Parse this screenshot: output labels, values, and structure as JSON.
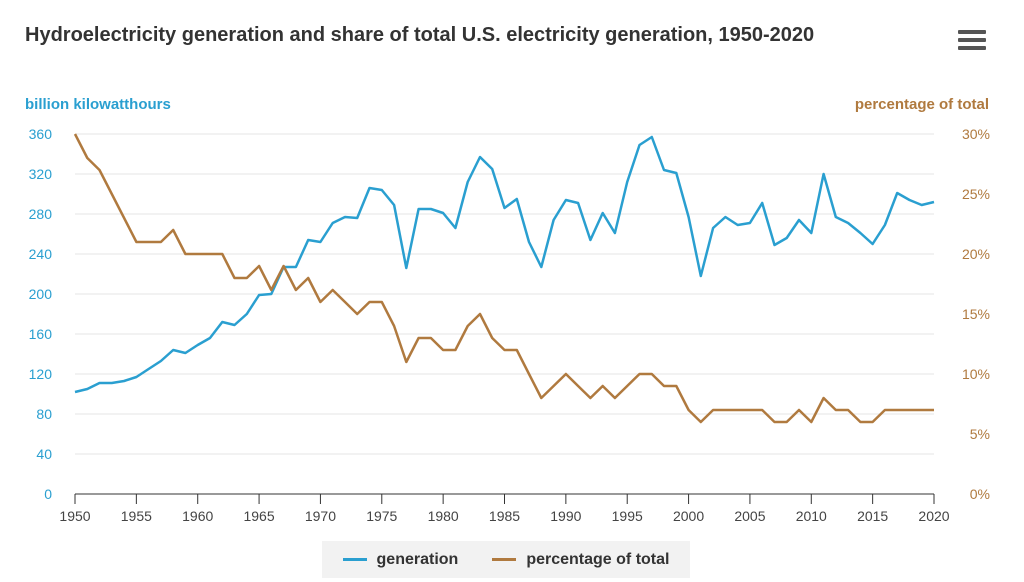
{
  "header": {
    "title": "Hydroelectricity generation and share of total U.S. electricity generation, 1950-2020",
    "menu_icon": "hamburger-menu-icon"
  },
  "chart_data": {
    "type": "line",
    "title": "Hydroelectricity generation and share of total U.S. electricity generation, 1950-2020",
    "ylabel_left": "billion kilowatthours",
    "ylabel_right": "percentage of total",
    "ylim_left": [
      0,
      360
    ],
    "ylim_right": [
      0,
      30
    ],
    "xlim": [
      1950,
      2020
    ],
    "grid": true,
    "legend_placement": "bottom",
    "x_ticks": [
      "1950",
      "1955",
      "1960",
      "1965",
      "1970",
      "1975",
      "1980",
      "1985",
      "1990",
      "1995",
      "2000",
      "2005",
      "2010",
      "2015",
      "2020"
    ],
    "y_ticks_left": [
      "0",
      "40",
      "80",
      "120",
      "160",
      "200",
      "240",
      "280",
      "320",
      "360"
    ],
    "y_ticks_right": [
      "0%",
      "5%",
      "10%",
      "15%",
      "20%",
      "25%",
      "30%"
    ],
    "x": [
      1950,
      1951,
      1952,
      1953,
      1954,
      1955,
      1956,
      1957,
      1958,
      1959,
      1960,
      1961,
      1962,
      1963,
      1964,
      1965,
      1966,
      1967,
      1968,
      1969,
      1970,
      1971,
      1972,
      1973,
      1974,
      1975,
      1976,
      1977,
      1978,
      1979,
      1980,
      1981,
      1982,
      1983,
      1984,
      1985,
      1986,
      1987,
      1988,
      1989,
      1990,
      1991,
      1992,
      1993,
      1994,
      1995,
      1996,
      1997,
      1998,
      1999,
      2000,
      2001,
      2002,
      2003,
      2004,
      2005,
      2006,
      2007,
      2008,
      2009,
      2010,
      2011,
      2012,
      2013,
      2014,
      2015,
      2016,
      2017,
      2018,
      2019,
      2020
    ],
    "series": [
      {
        "name": "generation",
        "axis": "left",
        "color": "#2a9fd0",
        "values": [
          102,
          105,
          111,
          111,
          113,
          117,
          125,
          133,
          144,
          141,
          149,
          156,
          172,
          169,
          180,
          199,
          200,
          227,
          227,
          254,
          252,
          271,
          277,
          276,
          306,
          304,
          289,
          226,
          285,
          285,
          281,
          266,
          312,
          337,
          325,
          286,
          295,
          252,
          227,
          274,
          294,
          291,
          254,
          281,
          261,
          312,
          349,
          357,
          324,
          321,
          277,
          218,
          266,
          277,
          269,
          271,
          291,
          249,
          256,
          274,
          261,
          320,
          277,
          271,
          261,
          250,
          269,
          301,
          294,
          289,
          292
        ]
      },
      {
        "name": "percentage of total",
        "axis": "right",
        "color": "#b07a3f",
        "values": [
          30,
          28,
          27,
          25,
          23,
          21,
          21,
          21,
          22,
          20,
          20,
          20,
          20,
          18,
          18,
          19,
          17,
          19,
          17,
          18,
          16,
          17,
          16,
          15,
          16,
          16,
          14,
          11,
          13,
          13,
          12,
          12,
          14,
          15,
          13,
          12,
          12,
          10,
          8,
          9,
          10,
          9,
          8,
          9,
          8,
          9,
          10,
          10,
          9,
          9,
          7,
          6,
          7,
          7,
          7,
          7,
          7,
          6,
          6,
          7,
          6,
          8,
          7,
          7,
          6,
          6,
          7,
          7,
          7,
          7,
          7
        ]
      }
    ]
  },
  "legend": {
    "items": [
      {
        "label": "generation",
        "color": "#2a9fd0"
      },
      {
        "label": "percentage of total",
        "color": "#b07a3f"
      }
    ]
  }
}
